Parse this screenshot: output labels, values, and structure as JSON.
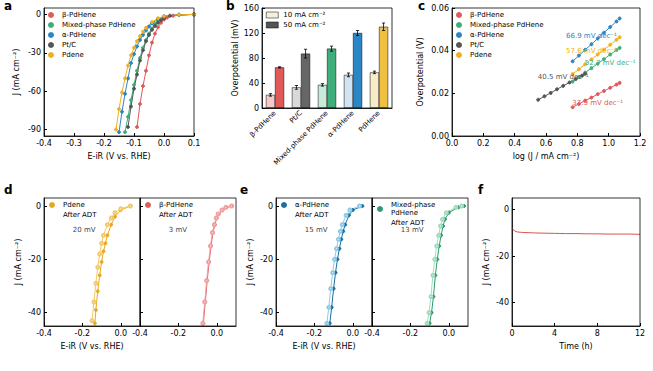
{
  "chart_data": [
    {
      "type": "line",
      "title": "a",
      "xlabel": "E-iR (V vs. RHE)",
      "ylabel": "J (mA cm⁻²)",
      "xlim": [
        -0.4,
        0.1
      ],
      "xticks": [
        -0.4,
        -0.3,
        -0.2,
        -0.1,
        {
          "value": 0,
          "label": "0.0"
        },
        0.1
      ],
      "ylim": [
        -95,
        5
      ],
      "yticks": [
        0,
        -30,
        -60,
        -90
      ],
      "grid": false,
      "legend": "upper left",
      "marker": "circle",
      "line_style": "solid",
      "series": [
        {
          "name": "β-PdHene",
          "color": "#e05a5a",
          "x": [
            0.1,
            0.05,
            0.03,
            0.01,
            0.0,
            -0.01,
            -0.02,
            -0.03,
            -0.04,
            -0.05,
            -0.06,
            -0.07,
            -0.08,
            -0.09
          ],
          "values": [
            0,
            -0.5,
            -1,
            -2.5,
            -4,
            -6.5,
            -10,
            -15,
            -22,
            -32,
            -44,
            -56,
            -70,
            -88
          ]
        },
        {
          "name": "Mixed-phase PdHene",
          "color": "#3fae7a",
          "x": [
            0.1,
            0.05,
            0.0,
            -0.02,
            -0.03,
            -0.04,
            -0.05,
            -0.06,
            -0.07,
            -0.08,
            -0.09,
            -0.1,
            -0.11,
            -0.12,
            -0.13
          ],
          "values": [
            0,
            -0.5,
            -2.5,
            -5,
            -7.5,
            -11,
            -15,
            -20,
            -26,
            -34,
            -44,
            -55,
            -67,
            -80,
            -92
          ]
        },
        {
          "name": "α-PdHene",
          "color": "#2b86c5",
          "x": [
            0.1,
            0.05,
            0.0,
            -0.02,
            -0.04,
            -0.05,
            -0.06,
            -0.07,
            -0.08,
            -0.09,
            -0.1,
            -0.11,
            -0.12,
            -0.13,
            -0.14,
            -0.15
          ],
          "values": [
            0,
            -0.3,
            -1.5,
            -3.5,
            -7,
            -9.5,
            -12.5,
            -16,
            -20,
            -25,
            -31,
            -38,
            -50,
            -62,
            -76,
            -92
          ]
        },
        {
          "name": "Pt/C",
          "color": "#555555",
          "x": [
            0.1,
            0.05,
            0.02,
            0.0,
            -0.01,
            -0.02,
            -0.03,
            -0.04,
            -0.05,
            -0.06,
            -0.07,
            -0.08,
            -0.09,
            -0.1,
            -0.11,
            -0.12
          ],
          "values": [
            0,
            -0.3,
            -1,
            -3,
            -4.5,
            -6.5,
            -9,
            -12,
            -16,
            -21,
            -28,
            -36,
            -47,
            -58,
            -72,
            -88
          ]
        },
        {
          "name": "Pdene",
          "color": "#f0b020",
          "x": [
            0.1,
            0.05,
            0.0,
            -0.02,
            -0.04,
            -0.06,
            -0.07,
            -0.08,
            -0.09,
            -0.1,
            -0.11,
            -0.12,
            -0.13,
            -0.14,
            -0.15,
            -0.16
          ],
          "values": [
            0,
            -0.3,
            -1.5,
            -3,
            -6,
            -10.5,
            -13.5,
            -17,
            -21,
            -26,
            -32,
            -40,
            -50,
            -61,
            -74,
            -90
          ]
        }
      ]
    },
    {
      "type": "bar",
      "title": "b",
      "ylabel": "Overpotential (mV)",
      "categories": [
        "β-PdHene",
        "Pt/C",
        "Mixed-phase PdHene",
        "α-PdHene",
        "PdHene"
      ],
      "ylim": [
        0,
        160
      ],
      "yticks": [
        0,
        40,
        80,
        120,
        160
      ],
      "grid": false,
      "legend": "upper left",
      "series": [
        {
          "name": "10 mA cm⁻²",
          "color": "#f7efd8",
          "colors": [
            "#f6c9c9",
            "#d9d9d9",
            "#c8ead8",
            "#cfe3f3",
            "#f7ecc8"
          ],
          "values": [
            21,
            33,
            37,
            53,
            57
          ],
          "errors": [
            2,
            3,
            2,
            3,
            2
          ]
        },
        {
          "name": "50 mA cm⁻²",
          "color": "#555555",
          "colors": [
            "#e05a5a",
            "#666666",
            "#3fae7a",
            "#2b86c5",
            "#f0c040"
          ],
          "values": [
            65,
            87,
            95,
            120,
            130
          ],
          "errors": [
            1,
            7,
            4,
            4,
            6
          ]
        }
      ]
    },
    {
      "type": "line",
      "title": "c",
      "xlabel": "log (J / mA cm⁻²)",
      "ylabel": "Overpotential (V)",
      "xlim": [
        0,
        1.2
      ],
      "xticks": [
        {
          "value": 0,
          "label": "0.0"
        },
        0.2,
        0.4,
        0.6,
        0.8,
        {
          "value": 1,
          "label": "1.0"
        },
        1.2
      ],
      "ylim": [
        0,
        0.06
      ],
      "yticks": [
        {
          "value": 0,
          "label": "0.00"
        },
        0.02,
        0.04,
        0.06
      ],
      "grid": false,
      "legend": "upper left",
      "marker": "circle",
      "line_style": "solid",
      "series": [
        {
          "name": "β-PdHene",
          "color": "#e05a5a",
          "annotation": "37.9 mV dec⁻¹",
          "x": [
            0.77,
            0.81,
            0.85,
            0.89,
            0.93,
            0.97,
            1.01,
            1.05,
            1.07
          ],
          "values": [
            0.0135,
            0.015,
            0.0166,
            0.018,
            0.0196,
            0.0211,
            0.0226,
            0.0241,
            0.0249
          ]
        },
        {
          "name": "Mixed-phase PdHene",
          "color": "#3fae7a",
          "annotation": "52.7 mV dec⁻¹",
          "x": [
            0.77,
            0.81,
            0.85,
            0.89,
            0.93,
            0.97,
            1.01,
            1.05,
            1.07
          ],
          "values": [
            0.0255,
            0.0276,
            0.0297,
            0.0318,
            0.0339,
            0.036,
            0.0382,
            0.0403,
            0.0413
          ]
        },
        {
          "name": "α-PdHene",
          "color": "#2b86c5",
          "annotation": "66.9 mV dec⁻¹",
          "x": [
            0.77,
            0.81,
            0.85,
            0.89,
            0.93,
            0.97,
            1.01,
            1.05,
            1.07
          ],
          "values": [
            0.035,
            0.0377,
            0.0404,
            0.043,
            0.0457,
            0.0484,
            0.0511,
            0.0537,
            0.0551
          ]
        },
        {
          "name": "Pt/C",
          "color": "#555555",
          "annotation": "40.5 mV dec⁻¹",
          "x": [
            0.55,
            0.59,
            0.63,
            0.67,
            0.71,
            0.75,
            0.79,
            0.83,
            0.85
          ],
          "values": [
            0.017,
            0.0186,
            0.0202,
            0.0219,
            0.0235,
            0.0251,
            0.0267,
            0.0283,
            0.0292
          ]
        },
        {
          "name": "Pdene",
          "color": "#f0b020",
          "annotation": "57.6 mV dec⁻¹",
          "x": [
            0.77,
            0.81,
            0.85,
            0.89,
            0.93,
            0.97,
            1.01,
            1.05,
            1.07
          ],
          "values": [
            0.029,
            0.0313,
            0.0336,
            0.0359,
            0.0382,
            0.0405,
            0.0428,
            0.0451,
            0.0463
          ]
        }
      ]
    },
    {
      "type": "line",
      "title": "d",
      "xlabel": "E-iR (V vs. RHE)",
      "ylabel": "J (mA cm⁻²)",
      "annotation": "20 mV",
      "xlim": [
        -0.4,
        0.1
      ],
      "xticks": [
        -0.4,
        -0.2,
        {
          "value": 0,
          "label": "0.0"
        }
      ],
      "ylim": [
        -45,
        3
      ],
      "yticks": [
        0,
        -20,
        -40
      ],
      "grid": false,
      "legend": "upper left",
      "line_style": "solid",
      "series": [
        {
          "name": "Pdene",
          "color": "#e8a920",
          "marker": "circle",
          "x": [
            0.05,
            0.0,
            -0.03,
            -0.05,
            -0.07,
            -0.08,
            -0.09,
            -0.1,
            -0.11,
            -0.12,
            -0.13,
            -0.135
          ],
          "values": [
            0,
            -1.5,
            -4,
            -7,
            -11,
            -14,
            -17,
            -21,
            -26,
            -32,
            -39,
            -44
          ]
        },
        {
          "name": "After ADT",
          "color": "#f2c96a",
          "marker": "emptyCircle",
          "x": [
            0.05,
            0.0,
            -0.03,
            -0.05,
            -0.07,
            -0.09,
            -0.1,
            -0.11,
            -0.12,
            -0.13,
            -0.14,
            -0.15
          ],
          "values": [
            0,
            -1,
            -2.5,
            -4.5,
            -7,
            -11,
            -14,
            -18,
            -23,
            -29,
            -36,
            -43
          ]
        }
      ]
    },
    {
      "type": "line",
      "annotation": "3 mV",
      "tick_labels": "x",
      "xlim": [
        -0.4,
        0.1
      ],
      "xticks": [
        -0.4,
        -0.2,
        {
          "value": 0,
          "label": "0.0"
        }
      ],
      "ylim": [
        -45,
        3
      ],
      "yticks": [
        0,
        -20,
        -40
      ],
      "grid": false,
      "legend": "upper left",
      "line_style": "solid",
      "series": [
        {
          "name": "β-PdHene",
          "color": "#e05a5a",
          "marker": "circle",
          "x": [
            0.08,
            0.05,
            0.03,
            0.01,
            0.0,
            -0.01,
            -0.02,
            -0.03,
            -0.04,
            -0.05,
            -0.06,
            -0.07
          ],
          "values": [
            0,
            -0.5,
            -1.5,
            -3,
            -4.5,
            -7,
            -10,
            -15,
            -21,
            -28,
            -36,
            -44
          ]
        },
        {
          "name": "After ADT",
          "color": "#f0a0a0",
          "marker": "emptyCircle",
          "x": [
            0.077,
            0.047,
            0.027,
            0.007,
            -0.003,
            -0.013,
            -0.023,
            -0.033,
            -0.043,
            -0.053,
            -0.063,
            -0.073
          ],
          "values": [
            0,
            -0.5,
            -1.5,
            -3,
            -4.5,
            -7,
            -10,
            -15,
            -21,
            -28,
            -36,
            -44
          ]
        }
      ]
    },
    {
      "type": "line",
      "title": "e",
      "xlabel": "E-iR (V vs. RHE)",
      "ylabel": "J (mA cm⁻²)",
      "annotation": "15 mV",
      "xlim": [
        -0.4,
        0.1
      ],
      "xticks": [
        -0.4,
        -0.2,
        {
          "value": 0,
          "label": "0.0"
        }
      ],
      "ylim": [
        -45,
        3
      ],
      "yticks": [
        0,
        -20,
        -40
      ],
      "grid": false,
      "legend": "upper left",
      "line_style": "solid",
      "series": [
        {
          "name": "α-PdHene",
          "color": "#1a6fa0",
          "marker": "circle",
          "x": [
            0.05,
            0.0,
            -0.02,
            -0.04,
            -0.05,
            -0.06,
            -0.07,
            -0.08,
            -0.09,
            -0.1,
            -0.11,
            -0.12
          ],
          "values": [
            0,
            -1.5,
            -3.5,
            -7,
            -9.5,
            -12.5,
            -16,
            -20,
            -25,
            -31,
            -38,
            -44
          ]
        },
        {
          "name": "After ADT",
          "color": "#8ccbe8",
          "marker": "emptyCircle",
          "x": [
            0.035,
            -0.015,
            -0.035,
            -0.055,
            -0.065,
            -0.075,
            -0.085,
            -0.095,
            -0.105,
            -0.115,
            -0.125,
            -0.135
          ],
          "values": [
            0,
            -1.5,
            -3.5,
            -7,
            -9.5,
            -12.5,
            -16,
            -20,
            -25,
            -31,
            -38,
            -44
          ]
        }
      ]
    },
    {
      "type": "line",
      "annotation": "13 mV",
      "tick_labels": "x",
      "xlim": [
        -0.4,
        0.1
      ],
      "xticks": [
        -0.4,
        -0.2,
        {
          "value": 0,
          "label": "0.0"
        }
      ],
      "ylim": [
        -45,
        3
      ],
      "yticks": [
        0,
        -20,
        -40
      ],
      "grid": false,
      "legend": "upper left",
      "line_style": "solid",
      "series": [
        {
          "name": "Mixed-phase PdHene",
          "color": "#2e9a6b",
          "marker": "circle",
          "x": [
            0.08,
            0.05,
            0.0,
            -0.02,
            -0.03,
            -0.04,
            -0.05,
            -0.06,
            -0.07,
            -0.08,
            -0.09,
            -0.1
          ],
          "values": [
            0,
            -0.5,
            -2.5,
            -5,
            -7.5,
            -11,
            -15,
            -20,
            -26,
            -34,
            -40,
            -44
          ]
        },
        {
          "name": "After ADT",
          "color": "#9fdcbf",
          "marker": "emptyCircle",
          "x": [
            0.067,
            0.037,
            -0.013,
            -0.033,
            -0.043,
            -0.053,
            -0.063,
            -0.073,
            -0.083,
            -0.093,
            -0.103,
            -0.113
          ],
          "values": [
            0,
            -0.5,
            -2.5,
            -5,
            -7.5,
            -11,
            -15,
            -20,
            -26,
            -34,
            -40,
            -44
          ]
        }
      ]
    },
    {
      "type": "line",
      "title": "f",
      "xlabel": "Time (h)",
      "ylabel": "J (mA cm⁻²)",
      "xlim": [
        0,
        12
      ],
      "xticks": [
        0,
        4,
        8,
        12
      ],
      "ylim": [
        -50,
        5
      ],
      "yticks": [
        0,
        -20,
        -40
      ],
      "grid": false,
      "marker": "none",
      "line_style": "solid",
      "series": [
        {
          "color": "#d9534f",
          "x": [
            0,
            0.25,
            0.5,
            1,
            2,
            3,
            4,
            5,
            6,
            7,
            8,
            9,
            10,
            11,
            12
          ],
          "values": [
            -8,
            -9.2,
            -9.6,
            -9.8,
            -10,
            -10.1,
            -10.2,
            -10.3,
            -10.3,
            -10.4,
            -10.4,
            -10.5,
            -10.5,
            -10.5,
            -10.6
          ]
        }
      ]
    }
  ]
}
